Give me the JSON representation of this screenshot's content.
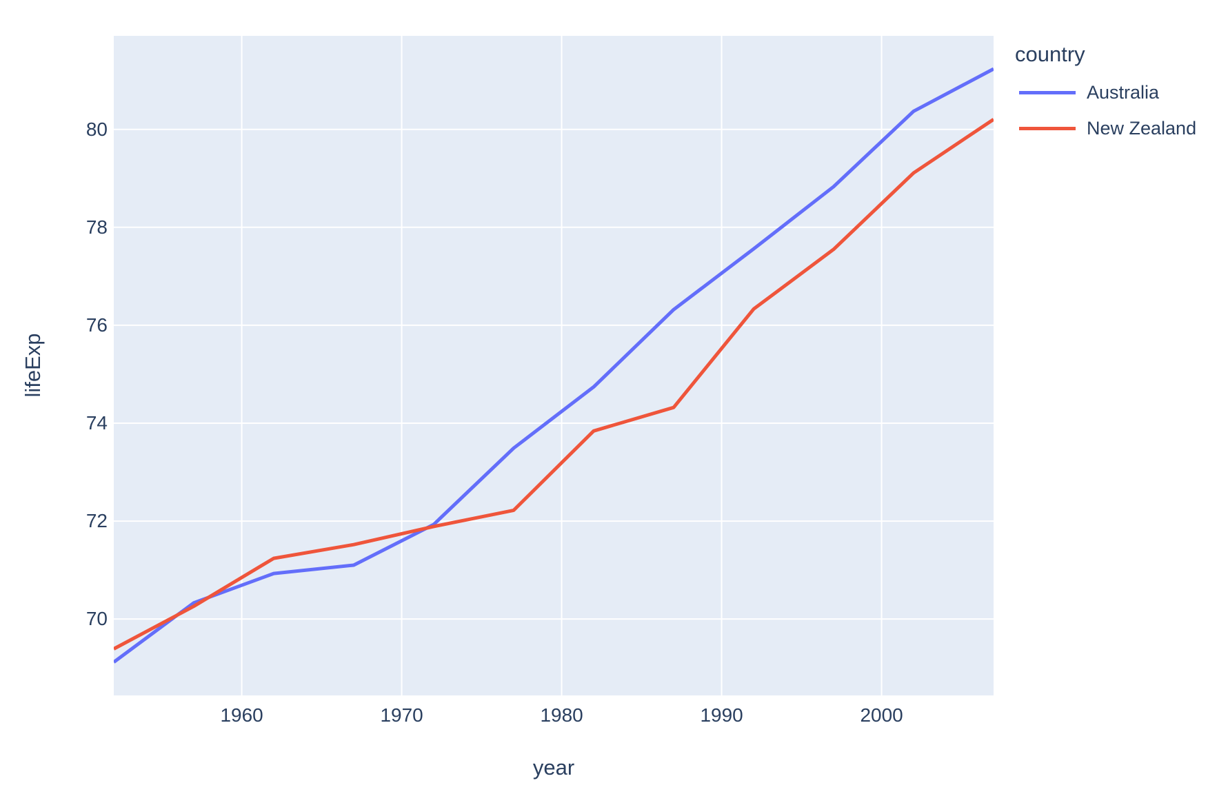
{
  "figure": {
    "paper_background": "#ffffff",
    "plot_background": "#e5ecf6",
    "grid_color": "#ffffff",
    "text_color": "#2a3f5f"
  },
  "legend": {
    "title": "country"
  },
  "chart_data": {
    "type": "line",
    "title": "",
    "xlabel": "year",
    "ylabel": "lifeExp",
    "legend_title": "country",
    "legend_position": "right",
    "grid": true,
    "x": [
      1952,
      1957,
      1962,
      1967,
      1972,
      1977,
      1982,
      1987,
      1992,
      1997,
      2002,
      2007
    ],
    "series": [
      {
        "name": "Australia",
        "color": "#636efa",
        "values": [
          69.12,
          70.33,
          70.93,
          71.1,
          71.93,
          73.49,
          74.74,
          76.32,
          77.56,
          78.83,
          80.37,
          81.235
        ]
      },
      {
        "name": "New Zealand",
        "color": "#ef553b",
        "values": [
          69.39,
          70.26,
          71.24,
          71.52,
          71.89,
          72.22,
          73.84,
          74.32,
          76.33,
          77.55,
          79.11,
          80.204
        ]
      }
    ],
    "xlim": [
      1952,
      2007
    ],
    "ylim": [
      68.44,
      81.91
    ],
    "xticks": [
      1960,
      1970,
      1980,
      1990,
      2000
    ],
    "yticks": [
      70,
      72,
      74,
      76,
      78,
      80
    ],
    "line_width": 5
  }
}
